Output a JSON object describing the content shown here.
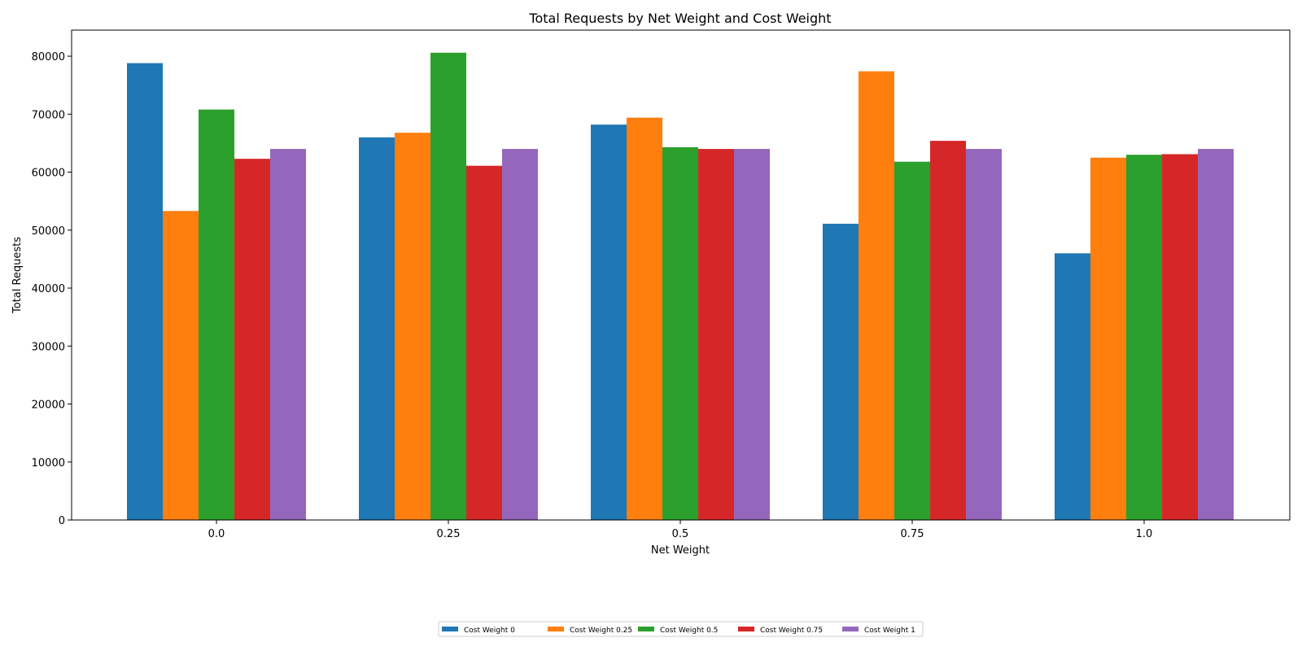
{
  "chart_data": {
    "type": "bar",
    "title": "Total Requests by Net Weight and Cost Weight",
    "xlabel": "Net Weight",
    "ylabel": "Total Requests",
    "categories": [
      "0.0",
      "0.25",
      "0.5",
      "0.75",
      "1.0"
    ],
    "ylim": [
      0,
      84500
    ],
    "yticks": [
      0,
      10000,
      20000,
      30000,
      40000,
      50000,
      60000,
      70000,
      80000
    ],
    "grid": false,
    "legend_position": "bottom-center",
    "series": [
      {
        "name": "Cost Weight 0",
        "color": "#1f77b4",
        "values": [
          78800,
          66000,
          68200,
          51100,
          46000
        ]
      },
      {
        "name": "Cost Weight 0.25",
        "color": "#ff7f0e",
        "values": [
          53300,
          66800,
          69400,
          77400,
          62500
        ]
      },
      {
        "name": "Cost Weight 0.5",
        "color": "#2ca02c",
        "values": [
          70800,
          80600,
          64300,
          61800,
          63000
        ]
      },
      {
        "name": "Cost Weight 0.75",
        "color": "#d62728",
        "values": [
          62300,
          61100,
          64000,
          65400,
          63100
        ]
      },
      {
        "name": "Cost Weight 1",
        "color": "#9467bd",
        "values": [
          64000,
          64000,
          64000,
          64000,
          64000
        ]
      }
    ]
  }
}
